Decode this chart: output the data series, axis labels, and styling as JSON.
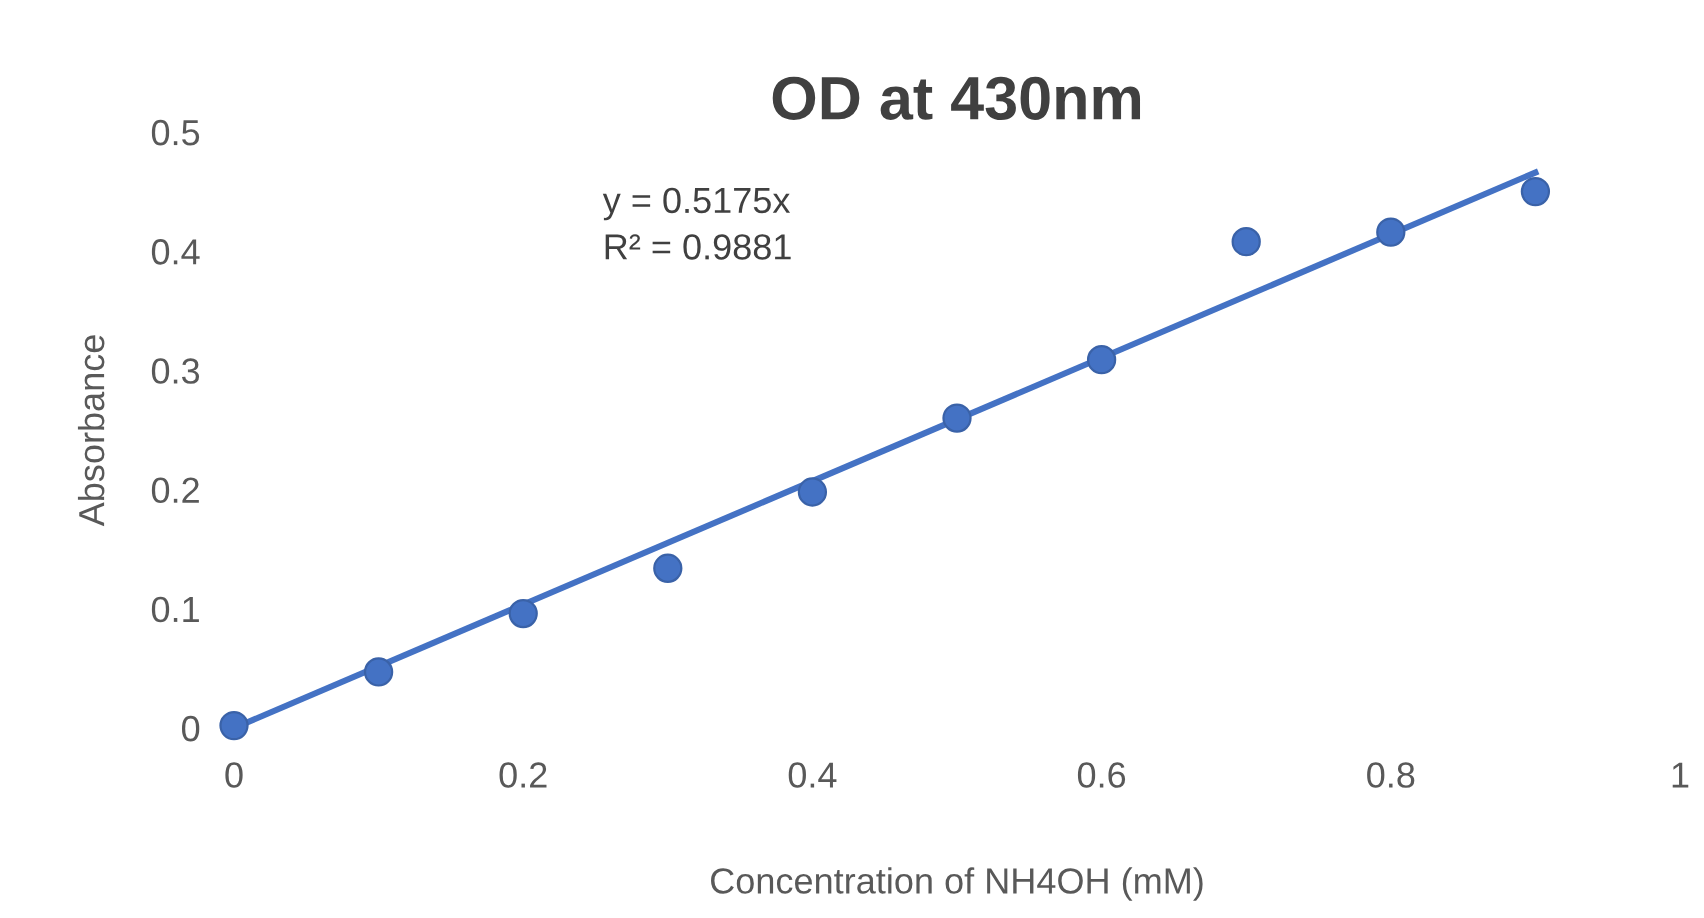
{
  "chart_data": {
    "type": "scatter",
    "title": "OD at 430nm",
    "xlabel": "Concentration of NH4OH (mM)",
    "ylabel": "Absorbance",
    "annotations": [
      "y = 0.5175x",
      "R² = 0.9881"
    ],
    "series": [
      {
        "color": "#4472c4",
        "marker": "circle",
        "x": [
          0,
          0.1,
          0.2,
          0.3,
          0.4,
          0.5,
          0.6,
          0.7,
          0.8,
          0.9
        ],
        "values": [
          0.002,
          0.047,
          0.096,
          0.134,
          0.198,
          0.26,
          0.309,
          0.408,
          0.416,
          0.45
        ]
      },
      {
        "type": "line",
        "marker": "none",
        "color": "#4472c4",
        "x": [
          0,
          0.9
        ],
        "values": [
          0,
          0.466
        ]
      }
    ],
    "line_style": "solid",
    "grid": false,
    "xlim": [
      0,
      1
    ],
    "ylim": [
      0,
      0.5
    ],
    "xticks": [
      0,
      0.2,
      0.4,
      0.6,
      0.8,
      1
    ],
    "yticks": [
      0,
      0.1,
      0.2,
      0.3,
      0.4,
      0.5
    ]
  }
}
